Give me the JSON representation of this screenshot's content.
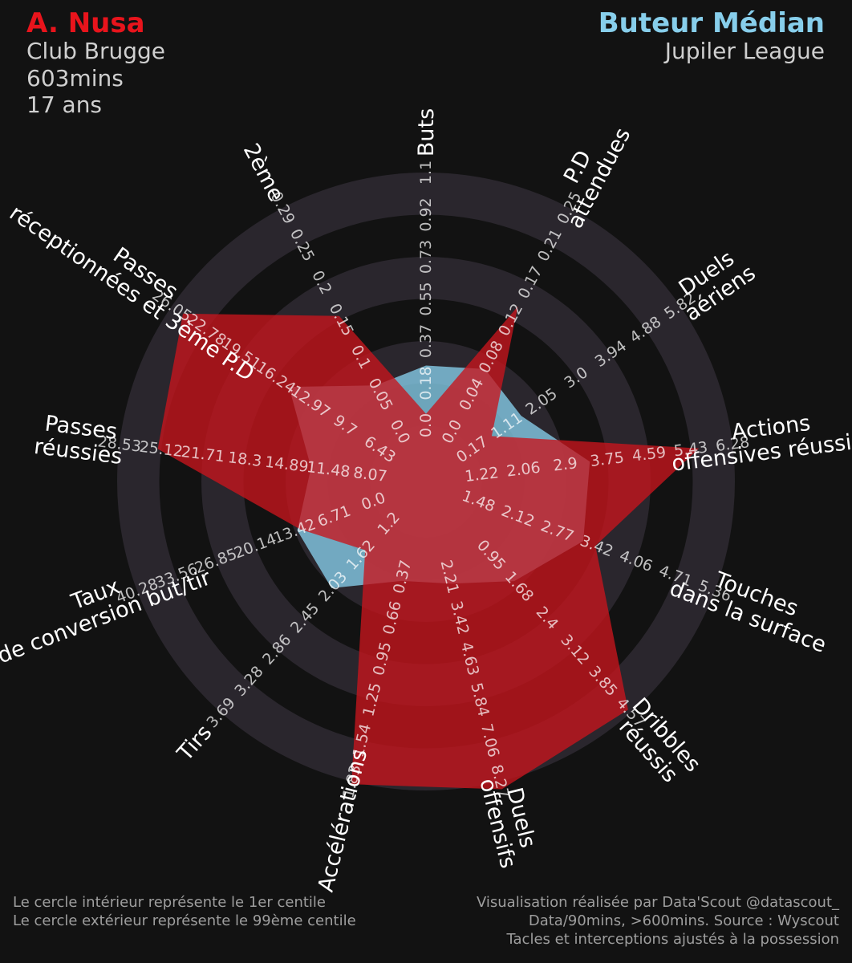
{
  "header": {
    "player_name": "A. Nusa",
    "club": "Club Brugge",
    "minutes": "603mins",
    "age": "17 ans",
    "comparison": "Buteur Médian",
    "league": "Jupiler League"
  },
  "footer": {
    "left": [
      "Le cercle intérieur représente le 1er centile",
      "Le cercle extérieur représente le 99ème centile"
    ],
    "right": [
      "Visualisation réalisée par Data'Scout @datascout_",
      "Data/90mins, >600mins. Source : Wyscout",
      "Tacles et interceptions ajustés à la possession"
    ]
  },
  "colors": {
    "background": "#121212",
    "player": "#c8141c",
    "comparison": "#87ceeb",
    "rings": "#2a262d"
  },
  "chart_data": {
    "type": "radar",
    "title": "",
    "percentile_rings": [
      "1er centile",
      "99ème centile"
    ],
    "params": [
      {
        "label": [
          "Buts"
        ],
        "ticks": [
          "0.0",
          "0.18",
          "0.37",
          "0.55",
          "0.73",
          "0.92",
          "1.1"
        ],
        "range": [
          0.0,
          1.1
        ],
        "player": 0.05,
        "comparison": 0.26
      },
      {
        "label": [
          "P.D",
          "attendues"
        ],
        "ticks": [
          "0.0",
          "0.04",
          "0.08",
          "0.12",
          "0.17",
          "0.21",
          "0.25"
        ],
        "range": [
          0.0,
          0.25
        ],
        "player": 0.14,
        "comparison": 0.07
      },
      {
        "label": [
          "Duels",
          "aériens"
        ],
        "ticks": [
          "0.17",
          "1.11",
          "2.05",
          "3.0",
          "3.94",
          "4.88",
          "5.82"
        ],
        "range": [
          0.17,
          5.82
        ],
        "player": 0.7,
        "comparison": 1.5
      },
      {
        "label": [
          "Actions",
          "offensives réussies"
        ],
        "ticks": [
          "1.22",
          "2.06",
          "2.9",
          "3.75",
          "4.59",
          "5.43",
          "6.28"
        ],
        "range": [
          1.22,
          6.28
        ],
        "player": 5.6,
        "comparison": 3.4
      },
      {
        "label": [
          "Touches",
          "dans la surface"
        ],
        "ticks": [
          "1.48",
          "2.12",
          "2.77",
          "3.42",
          "4.06",
          "4.71",
          "5.36"
        ],
        "range": [
          1.48,
          5.36
        ],
        "player": 3.4,
        "comparison": 3.2
      },
      {
        "label": [
          "Dribbles",
          "réussis"
        ],
        "ticks": [
          "0.95",
          "1.68",
          "2.4",
          "3.12",
          "3.85",
          "4.57"
        ],
        "range": [
          0.23,
          4.57
        ],
        "player": 4.5,
        "comparison": 1.55
      },
      {
        "label": [
          "Duels",
          "offensifs"
        ],
        "ticks": [
          "2.21",
          "3.42",
          "4.63",
          "5.84",
          "7.06",
          "8.27"
        ],
        "range": [
          0.99,
          8.27
        ],
        "player": 8.5,
        "comparison": 2.4
      },
      {
        "label": [
          "Accélérations"
        ],
        "ticks": [
          "0.37",
          "0.66",
          "0.95",
          "1.25",
          "1.54",
          "1.83"
        ],
        "range": [
          0.08,
          1.83
        ],
        "player": 1.85,
        "comparison": 0.4
      },
      {
        "label": [
          "Tirs"
        ],
        "ticks": [
          "1.2",
          "1.62",
          "2.03",
          "2.45",
          "2.86",
          "3.28",
          "3.69"
        ],
        "range": [
          1.2,
          3.69
        ],
        "player": 1.55,
        "comparison": 2.05
      },
      {
        "label": [
          "Taux",
          "de conversion but/tir"
        ],
        "ticks": [
          "0.0",
          "6.71",
          "13.42",
          "20.14",
          "26.85",
          "33.56",
          "40.28"
        ],
        "range": [
          0.0,
          40.28
        ],
        "player": 12.5,
        "comparison": 13.0
      },
      {
        "label": [
          "Passes",
          "réussies"
        ],
        "ticks": [
          "8.07",
          "11.48",
          "14.89",
          "18.3",
          "21.71",
          "25.12",
          "28.53"
        ],
        "range": [
          8.07,
          28.53
        ],
        "player": 25.4,
        "comparison": 12.9
      },
      {
        "label": [
          "Passes",
          "réceptionnées et 3ème P.D"
        ],
        "ticks": [
          "6.43",
          "9.7",
          "12.97",
          "16.24",
          "19.51",
          "22.78",
          "26.05"
        ],
        "range": [
          6.43,
          26.05
        ],
        "player": 25.0,
        "comparison": 15.0
      },
      {
        "label": [
          "2ème"
        ],
        "ticks": [
          "0.0",
          "0.05",
          "0.1",
          "0.15",
          "0.2",
          "0.25",
          "0.29"
        ],
        "range": [
          0.0,
          0.29
        ],
        "player": 0.15,
        "comparison": 0.06
      }
    ]
  }
}
